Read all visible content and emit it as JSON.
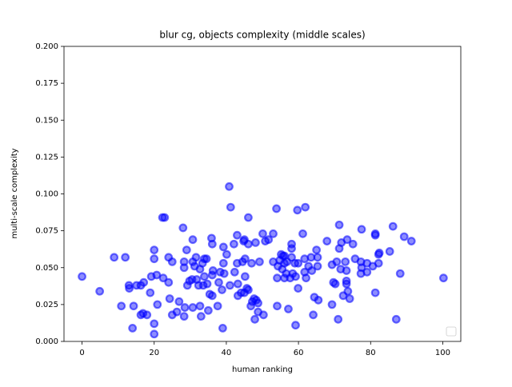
{
  "chart_data": {
    "type": "scatter",
    "title": "blur cg, objects complexity (middle scales)",
    "xlabel": "human ranking",
    "ylabel": "multi-scale complexity",
    "color": "#0000ff",
    "xlim": [
      -5,
      105
    ],
    "ylim": [
      0,
      0.2
    ],
    "xticks": [
      0,
      20,
      40,
      60,
      80,
      100
    ],
    "yticks": [
      {
        "value": 0,
        "label": "0.000"
      },
      {
        "value": 0.025,
        "label": "0.025"
      },
      {
        "value": 0.05,
        "label": "0.050"
      },
      {
        "value": 0.075,
        "label": "0.075"
      },
      {
        "value": 0.1,
        "label": "0.100"
      },
      {
        "value": 0.125,
        "label": "0.125"
      },
      {
        "value": 0.15,
        "label": "0.150"
      },
      {
        "value": 0.175,
        "label": "0.175"
      },
      {
        "value": 0.2,
        "label": "0.200"
      }
    ],
    "x": [
      0,
      4.9,
      8.9,
      12,
      10.9,
      13,
      13.1,
      14,
      14.3,
      15.1,
      16.3,
      16.3,
      16.9,
      17.1,
      18,
      18.9,
      19.2,
      20,
      20,
      20,
      20,
      20.7,
      20.9,
      22.3,
      22.9,
      22.5,
      24,
      24,
      24.3,
      25,
      25,
      26.3,
      26.9,
      28,
      28.3,
      28.3,
      28.5,
      28.3,
      29,
      29.2,
      29.8,
      30.7,
      30.7,
      30.7,
      30.5,
      31.2,
      31.6,
      31.8,
      32.3,
      32.7,
      32.7,
      33,
      33.4,
      33.6,
      33.9,
      33.9,
      34.5,
      34.7,
      35.4,
      35,
      35.9,
      36.1,
      36.1,
      36.3,
      36.1,
      37.6,
      37.9,
      38.3,
      38.8,
      39.2,
      39.2,
      39.4,
      39,
      40.1,
      40.8,
      41.2,
      41,
      42.1,
      42.3,
      43,
      43,
      43.2,
      43.2,
      44.1,
      44.5,
      44.8,
      45,
      45,
      45.2,
      45.2,
      45.7,
      46.1,
      46.1,
      46.1,
      46.8,
      47,
      47.2,
      47.7,
      47.9,
      48.1,
      48.3,
      48.8,
      48.8,
      49.2,
      50.1,
      50.3,
      50.8,
      51.7,
      53,
      53,
      53.9,
      54.1,
      54.1,
      54.3,
      54.8,
      55.2,
      55.5,
      55.7,
      56.1,
      56.1,
      56.1,
      56.6,
      56.8,
      57.2,
      57.7,
      58.1,
      58.1,
      58.1,
      58.4,
      59,
      59.2,
      59.2,
      59.7,
      59.9,
      59.9,
      61.2,
      61.7,
      61.7,
      61.9,
      62.1,
      62.8,
      63.5,
      63.7,
      64.1,
      64.4,
      65,
      65.3,
      65.3,
      65.5,
      67.9,
      69.3,
      69.7,
      69.3,
      70.2,
      70.6,
      71,
      71.3,
      71.3,
      71.7,
      71.9,
      72.4,
      73,
      73.3,
      73.3,
      73.3,
      73.7,
      73.5,
      74.2,
      75.1,
      75.7,
      77.3,
      77.5,
      77.5,
      77.3,
      79,
      79,
      80.6,
      81.3,
      81.3,
      81.3,
      82.2,
      82.2,
      82.4,
      85.3,
      86.2,
      87.1,
      88.2,
      89.3,
      91.3,
      100.2
    ],
    "y": [
      0.044,
      0.034,
      0.057,
      0.057,
      0.024,
      0.038,
      0.036,
      0.009,
      0.024,
      0.038,
      0.038,
      0.018,
      0.019,
      0.04,
      0.018,
      0.033,
      0.044,
      0.062,
      0.056,
      0.012,
      0.005,
      0.045,
      0.025,
      0.084,
      0.084,
      0.043,
      0.057,
      0.04,
      0.029,
      0.054,
      0.018,
      0.02,
      0.027,
      0.077,
      0.054,
      0.05,
      0.023,
      0.017,
      0.062,
      0.038,
      0.041,
      0.069,
      0.054,
      0.023,
      0.042,
      0.051,
      0.057,
      0.042,
      0.038,
      0.049,
      0.024,
      0.017,
      0.053,
      0.038,
      0.044,
      0.056,
      0.056,
      0.039,
      0.032,
      0.021,
      0.07,
      0.066,
      0.045,
      0.048,
      0.031,
      0.024,
      0.04,
      0.047,
      0.035,
      0.064,
      0.053,
      0.046,
      0.009,
      0.059,
      0.105,
      0.091,
      0.038,
      0.066,
      0.047,
      0.072,
      0.053,
      0.039,
      0.031,
      0.033,
      0.054,
      0.068,
      0.069,
      0.033,
      0.056,
      0.044,
      0.036,
      0.066,
      0.035,
      0.084,
      0.024,
      0.053,
      0.027,
      0.029,
      0.015,
      0.067,
      0.028,
      0.026,
      0.02,
      0.054,
      0.073,
      0.018,
      0.068,
      0.069,
      0.073,
      0.054,
      0.09,
      0.043,
      0.024,
      0.051,
      0.055,
      0.059,
      0.049,
      0.058,
      0.058,
      0.043,
      0.053,
      0.046,
      0.054,
      0.022,
      0.043,
      0.066,
      0.063,
      0.057,
      0.046,
      0.053,
      0.011,
      0.044,
      0.089,
      0.053,
      0.036,
      0.073,
      0.056,
      0.047,
      0.091,
      0.043,
      0.051,
      0.057,
      0.048,
      0.018,
      0.03,
      0.062,
      0.051,
      0.057,
      0.028,
      0.068,
      0.052,
      0.04,
      0.025,
      0.039,
      0.054,
      0.015,
      0.079,
      0.063,
      0.049,
      0.067,
      0.031,
      0.054,
      0.048,
      0.039,
      0.041,
      0.034,
      0.069,
      0.029,
      0.066,
      0.056,
      0.054,
      0.076,
      0.05,
      0.046,
      0.047,
      0.053,
      0.051,
      0.073,
      0.072,
      0.033,
      0.053,
      0.059,
      0.06,
      0.061,
      0.078,
      0.015,
      0.046,
      0.071,
      0.068,
      0.043
    ]
  }
}
